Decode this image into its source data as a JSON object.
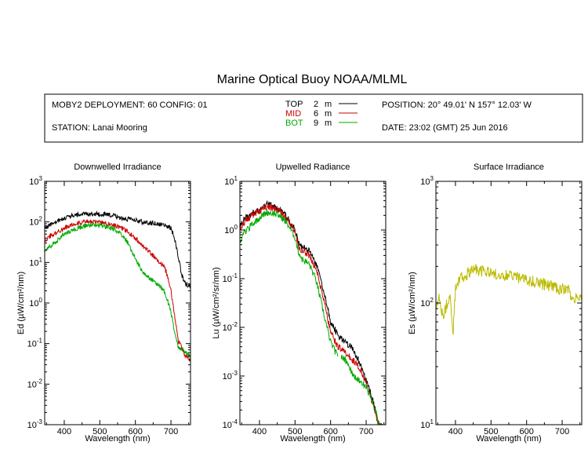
{
  "title": "Marine Optical Buoy NOAA/MLML",
  "header": {
    "deployment": "MOBY2 DEPLOYMENT: 60 CONFIG: 01",
    "station": "STATION: Lanai Mooring",
    "position": "POSITION: 20° 49.01' N   157° 12.03' W",
    "date": "DATE: 23:02 (GMT) 25 Jun 2016",
    "legend": [
      {
        "name": "TOP",
        "depth": "2",
        "unit": "m",
        "color": "#000000"
      },
      {
        "name": "MID",
        "depth": "6",
        "unit": "m",
        "color": "#cc0000"
      },
      {
        "name": "BOT",
        "depth": "9",
        "unit": "m",
        "color": "#00aa00"
      }
    ]
  },
  "chart_data": [
    {
      "type": "line",
      "title": "Downwelled Irradiance",
      "xlabel": "Wavelength (nm)",
      "ylabel": "Ed  (µW/cm²/nm)",
      "xlim": [
        345,
        755
      ],
      "ylim": [
        0.001,
        1000
      ],
      "yscale": "log",
      "xticks": [
        400,
        500,
        600,
        700
      ],
      "yticks": [
        {
          "value": 0.001,
          "base": "10",
          "exp": "-3"
        },
        {
          "value": 0.01,
          "base": "10",
          "exp": "-2"
        },
        {
          "value": 0.1,
          "base": "10",
          "exp": "-1"
        },
        {
          "value": 1,
          "base": "10",
          "exp": "0"
        },
        {
          "value": 10,
          "base": "10",
          "exp": "1"
        },
        {
          "value": 100,
          "base": "10",
          "exp": "2"
        },
        {
          "value": 1000,
          "base": "10",
          "exp": "3"
        }
      ],
      "series": [
        {
          "name": "TOP",
          "color": "#000000",
          "noise": 0.06,
          "x": [
            345,
            360,
            380,
            400,
            420,
            440,
            460,
            480,
            500,
            520,
            540,
            560,
            580,
            600,
            620,
            640,
            660,
            680,
            690,
            700,
            710,
            720,
            730,
            740,
            755
          ],
          "y": [
            70,
            85,
            100,
            125,
            140,
            150,
            158,
            158,
            155,
            150,
            140,
            125,
            115,
            108,
            100,
            95,
            90,
            85,
            80,
            70,
            40,
            15,
            5,
            3,
            2.6
          ]
        },
        {
          "name": "MID",
          "color": "#cc0000",
          "noise": 0.06,
          "x": [
            345,
            360,
            380,
            400,
            420,
            440,
            460,
            480,
            500,
            520,
            540,
            560,
            580,
            600,
            620,
            640,
            660,
            680,
            690,
            700,
            710,
            720,
            730,
            740,
            755
          ],
          "y": [
            35,
            45,
            55,
            70,
            85,
            95,
            100,
            100,
            98,
            92,
            85,
            72,
            55,
            40,
            25,
            18,
            12,
            8,
            5,
            2,
            0.5,
            0.12,
            0.08,
            0.05,
            0.04
          ]
        },
        {
          "name": "BOT",
          "color": "#00aa00",
          "noise": 0.06,
          "x": [
            345,
            360,
            380,
            400,
            420,
            440,
            460,
            480,
            500,
            520,
            540,
            560,
            580,
            600,
            620,
            640,
            660,
            680,
            690,
            700,
            710,
            720,
            730,
            740,
            755
          ],
          "y": [
            18,
            25,
            35,
            50,
            60,
            72,
            80,
            85,
            80,
            75,
            65,
            50,
            30,
            12,
            6,
            4,
            3,
            2,
            1.2,
            0.6,
            0.2,
            0.08,
            0.07,
            0.06,
            0.05
          ]
        }
      ]
    },
    {
      "type": "line",
      "title": "Upwelled Radiance",
      "xlabel": "Wavelength (nm)",
      "ylabel": "Lu  (µW/cm²/sr/nm)",
      "xlim": [
        345,
        755
      ],
      "ylim": [
        0.0001,
        10
      ],
      "yscale": "log",
      "xticks": [
        400,
        500,
        600,
        700
      ],
      "yticks": [
        {
          "value": 0.0001,
          "base": "10",
          "exp": "-4"
        },
        {
          "value": 0.001,
          "base": "10",
          "exp": "-3"
        },
        {
          "value": 0.01,
          "base": "10",
          "exp": "-2"
        },
        {
          "value": 0.1,
          "base": "10",
          "exp": "-1"
        },
        {
          "value": 1,
          "base": "10",
          "exp": "0"
        },
        {
          "value": 10,
          "base": "10",
          "exp": "1"
        }
      ],
      "series": [
        {
          "name": "TOP",
          "color": "#000000",
          "noise": 0.07,
          "x": [
            345,
            360,
            380,
            400,
            420,
            440,
            460,
            480,
            500,
            510,
            520,
            540,
            560,
            580,
            600,
            620,
            640,
            660,
            680,
            700,
            720,
            735,
            745,
            755
          ],
          "y": [
            1.2,
            1.8,
            2.2,
            2.6,
            3.3,
            3.1,
            2.6,
            1.7,
            1.0,
            0.55,
            0.45,
            0.38,
            0.2,
            0.06,
            0.013,
            0.007,
            0.005,
            0.004,
            0.002,
            0.0008,
            0.0003,
            0.0001,
            9e-05,
            8e-05
          ]
        },
        {
          "name": "MID",
          "color": "#cc0000",
          "noise": 0.07,
          "x": [
            345,
            360,
            380,
            400,
            420,
            440,
            460,
            480,
            500,
            510,
            520,
            540,
            560,
            580,
            600,
            620,
            640,
            660,
            680,
            700,
            720,
            735,
            745,
            755
          ],
          "y": [
            1.0,
            1.5,
            2.0,
            2.4,
            3.0,
            2.8,
            2.4,
            1.6,
            0.9,
            0.45,
            0.38,
            0.3,
            0.15,
            0.04,
            0.008,
            0.004,
            0.003,
            0.0022,
            0.0015,
            0.0007,
            0.00025,
            0.0001,
            9e-05,
            8e-05
          ]
        },
        {
          "name": "BOT",
          "color": "#00aa00",
          "noise": 0.07,
          "x": [
            345,
            360,
            380,
            400,
            420,
            440,
            460,
            480,
            500,
            510,
            520,
            540,
            560,
            580,
            600,
            620
          ],
          "y": [
            0.6,
            0.9,
            1.3,
            1.8,
            2.3,
            2.2,
            1.9,
            1.3,
            0.7,
            0.35,
            0.25,
            0.2,
            0.09,
            0.02,
            0.005,
            0.0025
          ]
        },
        {
          "name": "BOT",
          "color": "#00aa00",
          "noise": 0.07,
          "x": [
            630,
            645,
            660,
            670,
            680,
            690,
            700,
            710,
            720,
            730,
            735,
            745,
            755
          ],
          "y": [
            0.0025,
            0.002,
            0.0012,
            0.0009,
            0.0008,
            0.0007,
            0.0006,
            0.0004,
            0.00025,
            0.00015,
            0.0001,
            9e-05,
            8e-05
          ]
        }
      ]
    },
    {
      "type": "line",
      "title": "Surface Irradiance",
      "xlabel": "Wavelength (nm)",
      "ylabel": "Es  (µW/cm²/nm)",
      "xlim": [
        345,
        755
      ],
      "ylim": [
        10,
        1000
      ],
      "yscale": "log",
      "xticks": [
        400,
        500,
        600,
        700
      ],
      "yticks": [
        {
          "value": 10,
          "base": "10",
          "exp": "1"
        },
        {
          "value": 100,
          "base": "10",
          "exp": "2"
        },
        {
          "value": 1000,
          "base": "10",
          "exp": "3"
        }
      ],
      "series": [
        {
          "name": "Es",
          "color": "#bbbb00",
          "noise": 0.05,
          "x": [
            345,
            355,
            365,
            375,
            385,
            393,
            396,
            400,
            410,
            420,
            430,
            440,
            450,
            460,
            480,
            500,
            520,
            540,
            560,
            580,
            600,
            620,
            640,
            660,
            680,
            700,
            720,
            730,
            740,
            755
          ],
          "y": [
            85,
            110,
            75,
            95,
            115,
            55,
            80,
            130,
            150,
            165,
            170,
            180,
            195,
            185,
            180,
            178,
            172,
            170,
            165,
            160,
            152,
            150,
            145,
            140,
            135,
            130,
            125,
            108,
            115,
            120
          ]
        }
      ]
    }
  ]
}
